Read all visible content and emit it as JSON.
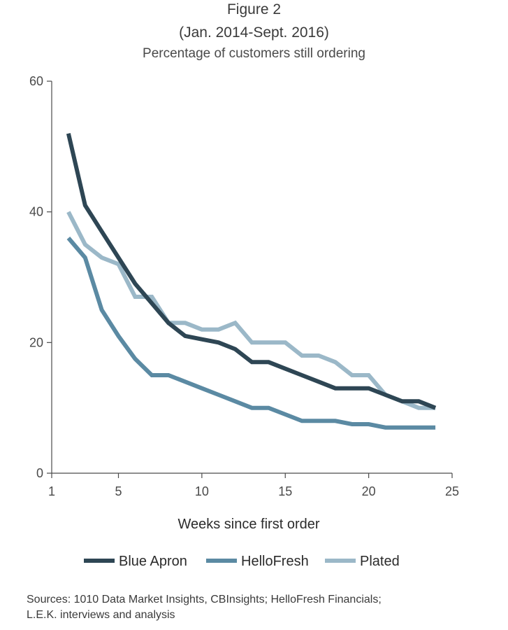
{
  "chart_data": {
    "type": "line",
    "title": "Figure 2",
    "subtitle": "(Jan. 2014-Sept. 2016)",
    "ylabel": "Percentage of customers still ordering",
    "xlabel": "Weeks since first order",
    "xlim": [
      1,
      25
    ],
    "ylim": [
      0,
      60
    ],
    "xticks": [
      1,
      5,
      10,
      15,
      20,
      25
    ],
    "yticks": [
      0,
      20,
      40,
      60
    ],
    "grid": false,
    "legend": "bottom",
    "series": [
      {
        "name": "Blue Apron",
        "color": "#2e4654",
        "x": [
          2,
          3,
          4,
          5,
          6,
          7,
          8,
          9,
          10,
          11,
          12,
          13,
          14,
          15,
          16,
          17,
          18,
          19,
          20,
          21,
          22,
          23,
          24
        ],
        "values": [
          52,
          41,
          37,
          33,
          29,
          26,
          23,
          21,
          20.5,
          20,
          19,
          17,
          17,
          16,
          15,
          14,
          13,
          13,
          13,
          12,
          11,
          11,
          10
        ]
      },
      {
        "name": "HelloFresh",
        "color": "#5b8aa3",
        "x": [
          2,
          3,
          4,
          5,
          6,
          7,
          8,
          9,
          10,
          11,
          12,
          13,
          14,
          15,
          16,
          17,
          18,
          19,
          20,
          21,
          22,
          23,
          24
        ],
        "values": [
          36,
          33,
          25,
          21,
          17.5,
          15,
          15,
          14,
          13,
          12,
          11,
          10,
          10,
          9,
          8,
          8,
          8,
          7.5,
          7.5,
          7,
          7,
          7,
          7
        ]
      },
      {
        "name": "Plated",
        "color": "#9bb8c8",
        "x": [
          2,
          3,
          4,
          5,
          6,
          7,
          8,
          9,
          10,
          11,
          12,
          13,
          14,
          15,
          16,
          17,
          18,
          19,
          20,
          21,
          22,
          23,
          24
        ],
        "values": [
          40,
          35,
          33,
          32,
          27,
          27,
          23,
          23,
          22,
          22,
          23,
          20,
          20,
          20,
          18,
          18,
          17,
          15,
          15,
          12,
          11,
          10,
          10
        ]
      }
    ]
  },
  "sources": [
    "Sources: 1010 Data Market Insights, CBInsights; HelloFresh Financials;",
    "L.E.K. interviews and analysis"
  ]
}
